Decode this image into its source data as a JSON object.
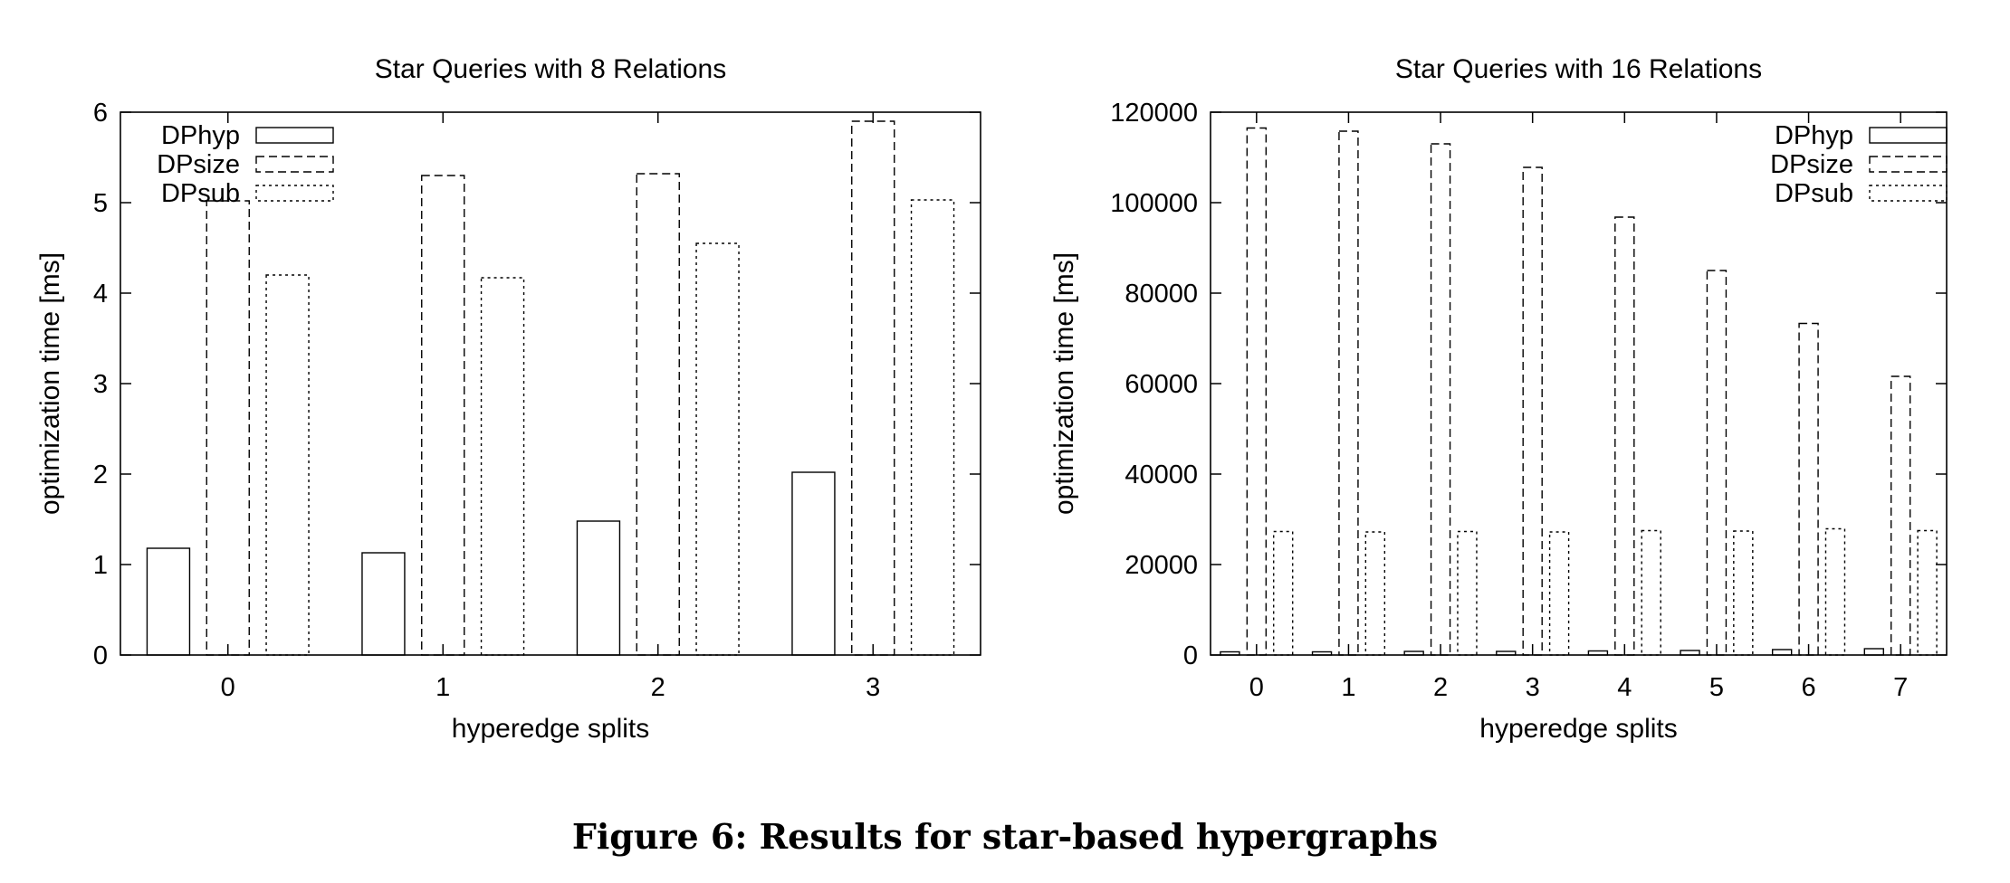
{
  "figure": {
    "caption": "Figure 6: Results for star-based hypergraphs"
  },
  "chart_data": [
    {
      "type": "bar",
      "title": "Star Queries with 8 Relations",
      "xlabel": "hyperedge splits",
      "ylabel": "optimization time [ms]",
      "categories": [
        "0",
        "1",
        "2",
        "3"
      ],
      "ylim": [
        0,
        6
      ],
      "yticks": [
        "0",
        "1",
        "2",
        "3",
        "4",
        "5",
        "6"
      ],
      "legend_position": "top-left",
      "grid": false,
      "series": [
        {
          "name": "DPhyp",
          "style": "solid",
          "values": [
            1.18,
            1.13,
            1.48,
            2.02
          ]
        },
        {
          "name": "DPsize",
          "style": "dashed",
          "values": [
            5.02,
            5.3,
            5.32,
            5.9
          ]
        },
        {
          "name": "DPsub",
          "style": "dotted",
          "values": [
            4.2,
            4.17,
            4.55,
            5.03
          ]
        }
      ]
    },
    {
      "type": "bar",
      "title": "Star Queries with 16 Relations",
      "xlabel": "hyperedge splits",
      "ylabel": "optimization time [ms]",
      "categories": [
        "0",
        "1",
        "2",
        "3",
        "4",
        "5",
        "6",
        "7"
      ],
      "ylim": [
        0,
        120000
      ],
      "yticks": [
        "0",
        "20000",
        "40000",
        "60000",
        "80000",
        "100000",
        "120000"
      ],
      "legend_position": "top-right",
      "grid": false,
      "series": [
        {
          "name": "DPhyp",
          "style": "solid",
          "values": [
            700,
            700,
            800,
            800,
            900,
            1000,
            1200,
            1400
          ]
        },
        {
          "name": "DPsize",
          "style": "dashed",
          "values": [
            116500,
            115800,
            113000,
            107800,
            96800,
            85000,
            73300,
            61600
          ]
        },
        {
          "name": "DPsub",
          "style": "dotted",
          "values": [
            27300,
            27200,
            27300,
            27200,
            27500,
            27400,
            27900,
            27500
          ]
        }
      ]
    }
  ]
}
